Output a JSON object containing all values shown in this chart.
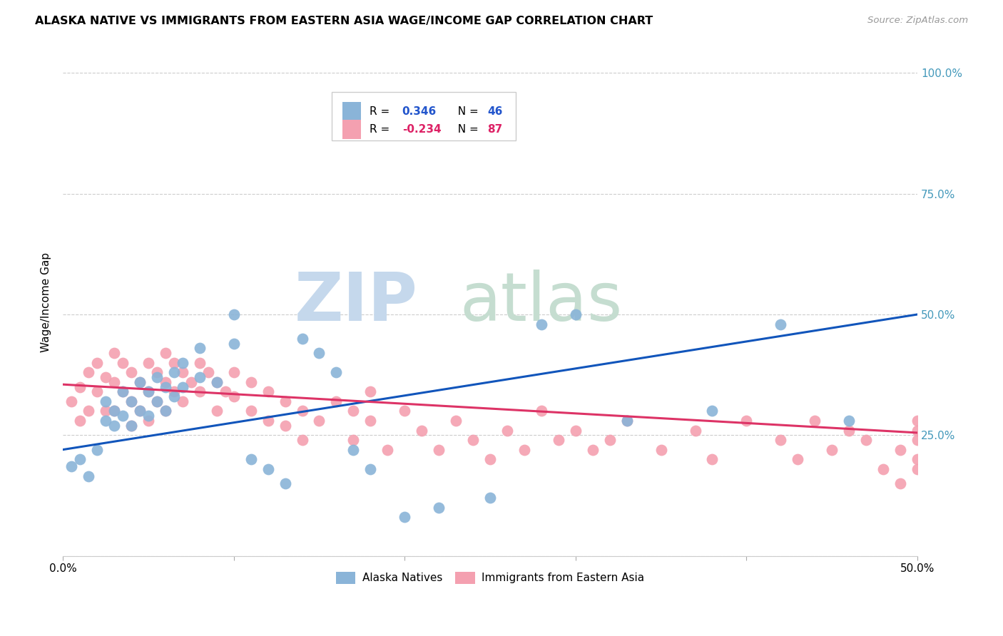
{
  "title": "ALASKA NATIVE VS IMMIGRANTS FROM EASTERN ASIA WAGE/INCOME GAP CORRELATION CHART",
  "source": "Source: ZipAtlas.com",
  "ylabel": "Wage/Income Gap",
  "legend_label1": "Alaska Natives",
  "legend_label2": "Immigrants from Eastern Asia",
  "R1": 0.346,
  "N1": 46,
  "R2": -0.234,
  "N2": 87,
  "color_blue": "#8AB4D8",
  "color_pink": "#F4A0B0",
  "line_blue": "#1155BB",
  "line_pink": "#DD3366",
  "blue_line_y0": 0.22,
  "blue_line_y1": 0.5,
  "pink_line_y0": 0.355,
  "pink_line_y1": 0.255,
  "xlim": [
    0.0,
    0.5
  ],
  "ylim": [
    0.0,
    1.05
  ],
  "ytick_values": [
    0.0,
    0.25,
    0.5,
    0.75,
    1.0
  ],
  "ytick_labels_right": [
    "",
    "25.0%",
    "50.0%",
    "75.0%",
    "100.0%"
  ],
  "xtick_positions": [
    0.0,
    0.1,
    0.2,
    0.3,
    0.4,
    0.5
  ],
  "xtick_labels": [
    "0.0%",
    "",
    "",
    "",
    "",
    "50.0%"
  ],
  "watermark_zip_color": "#C5D8EC",
  "watermark_atlas_color": "#C5DDD0",
  "alaska_x": [
    0.005,
    0.01,
    0.015,
    0.02,
    0.025,
    0.025,
    0.03,
    0.03,
    0.035,
    0.035,
    0.04,
    0.04,
    0.045,
    0.045,
    0.05,
    0.05,
    0.055,
    0.055,
    0.06,
    0.06,
    0.065,
    0.065,
    0.07,
    0.07,
    0.08,
    0.08,
    0.09,
    0.1,
    0.1,
    0.11,
    0.12,
    0.13,
    0.14,
    0.15,
    0.16,
    0.17,
    0.18,
    0.2,
    0.22,
    0.25,
    0.28,
    0.3,
    0.33,
    0.38,
    0.42,
    0.46
  ],
  "alaska_y": [
    0.185,
    0.2,
    0.165,
    0.22,
    0.28,
    0.32,
    0.3,
    0.27,
    0.34,
    0.29,
    0.32,
    0.27,
    0.36,
    0.3,
    0.34,
    0.29,
    0.37,
    0.32,
    0.35,
    0.3,
    0.38,
    0.33,
    0.4,
    0.35,
    0.43,
    0.37,
    0.36,
    0.5,
    0.44,
    0.2,
    0.18,
    0.15,
    0.45,
    0.42,
    0.38,
    0.22,
    0.18,
    0.08,
    0.1,
    0.12,
    0.48,
    0.5,
    0.28,
    0.3,
    0.48,
    0.28
  ],
  "eastern_x": [
    0.005,
    0.01,
    0.01,
    0.015,
    0.015,
    0.02,
    0.02,
    0.025,
    0.025,
    0.03,
    0.03,
    0.03,
    0.035,
    0.035,
    0.04,
    0.04,
    0.04,
    0.045,
    0.045,
    0.05,
    0.05,
    0.05,
    0.055,
    0.055,
    0.06,
    0.06,
    0.06,
    0.065,
    0.065,
    0.07,
    0.07,
    0.075,
    0.08,
    0.08,
    0.085,
    0.09,
    0.09,
    0.095,
    0.1,
    0.1,
    0.11,
    0.11,
    0.12,
    0.12,
    0.13,
    0.13,
    0.14,
    0.14,
    0.15,
    0.16,
    0.17,
    0.17,
    0.18,
    0.18,
    0.19,
    0.2,
    0.21,
    0.22,
    0.23,
    0.24,
    0.25,
    0.26,
    0.27,
    0.28,
    0.29,
    0.3,
    0.31,
    0.32,
    0.33,
    0.35,
    0.37,
    0.38,
    0.4,
    0.42,
    0.43,
    0.44,
    0.45,
    0.46,
    0.47,
    0.48,
    0.49,
    0.49,
    0.5,
    0.5,
    0.5,
    0.5,
    0.5
  ],
  "eastern_y": [
    0.32,
    0.35,
    0.28,
    0.38,
    0.3,
    0.4,
    0.34,
    0.37,
    0.3,
    0.42,
    0.36,
    0.3,
    0.4,
    0.34,
    0.38,
    0.32,
    0.27,
    0.36,
    0.3,
    0.4,
    0.34,
    0.28,
    0.38,
    0.32,
    0.42,
    0.36,
    0.3,
    0.4,
    0.34,
    0.38,
    0.32,
    0.36,
    0.4,
    0.34,
    0.38,
    0.36,
    0.3,
    0.34,
    0.38,
    0.33,
    0.36,
    0.3,
    0.34,
    0.28,
    0.32,
    0.27,
    0.3,
    0.24,
    0.28,
    0.32,
    0.3,
    0.24,
    0.34,
    0.28,
    0.22,
    0.3,
    0.26,
    0.22,
    0.28,
    0.24,
    0.2,
    0.26,
    0.22,
    0.3,
    0.24,
    0.26,
    0.22,
    0.24,
    0.28,
    0.22,
    0.26,
    0.2,
    0.28,
    0.24,
    0.2,
    0.28,
    0.22,
    0.26,
    0.24,
    0.18,
    0.22,
    0.15,
    0.28,
    0.24,
    0.2,
    0.18,
    0.26
  ]
}
